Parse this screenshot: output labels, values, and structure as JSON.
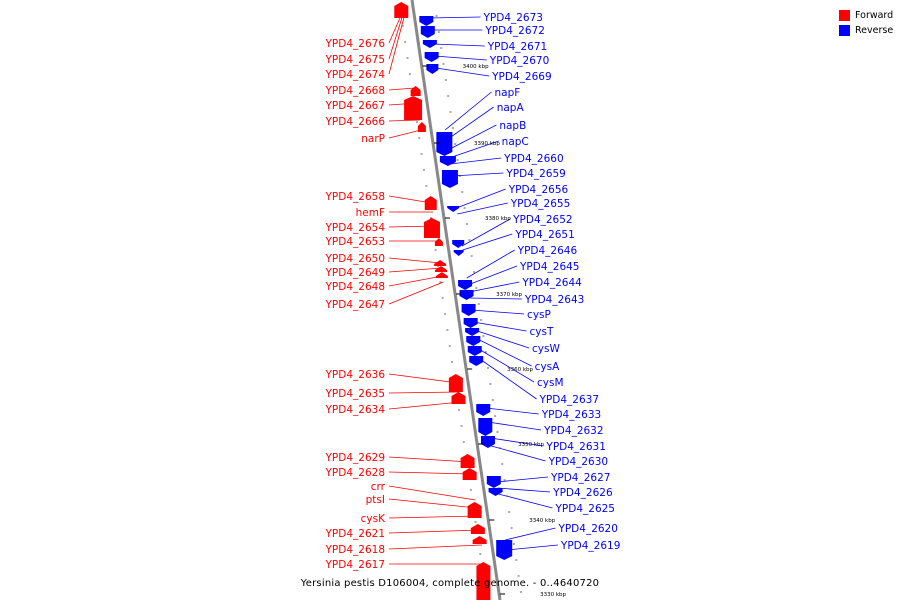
{
  "caption": "Yersinia pestis D106004, complete genome. - 0..4640720",
  "legend": [
    {
      "label": "Forward",
      "color": "#ff0000"
    },
    {
      "label": "Reverse",
      "color": "#0000ff"
    }
  ],
  "colors": {
    "forward": "#ff0000",
    "reverse": "#0000ff",
    "backbone": "#888888",
    "tick": "#000000"
  },
  "forward_genes": [
    "YPD4_2676",
    "YPD4_2675",
    "YPD4_2674",
    "YPD4_2668",
    "YPD4_2667",
    "YPD4_2666",
    "narP",
    "YPD4_2658",
    "hemF",
    "YPD4_2654",
    "YPD4_2653",
    "YPD4_2650",
    "YPD4_2649",
    "YPD4_2648",
    "YPD4_2647",
    "YPD4_2636",
    "YPD4_2635",
    "YPD4_2634",
    "YPD4_2629",
    "YPD4_2628",
    "crr",
    "ptsI",
    "cysK",
    "YPD4_2621",
    "YPD4_2618",
    "YPD4_2617"
  ],
  "reverse_genes": [
    "YPD4_2673",
    "YPD4_2672",
    "YPD4_2671",
    "YPD4_2670",
    "YPD4_2669",
    "napF",
    "napA",
    "napB",
    "napC",
    "YPD4_2660",
    "YPD4_2659",
    "YPD4_2656",
    "YPD4_2655",
    "YPD4_2652",
    "YPD4_2651",
    "YPD4_2646",
    "YPD4_2645",
    "YPD4_2644",
    "YPD4_2643",
    "cysP",
    "cysT",
    "cysW",
    "cysA",
    "cysM",
    "YPD4_2637",
    "YPD4_2633",
    "YPD4_2632",
    "YPD4_2631",
    "YPD4_2630",
    "YPD4_2627",
    "YPD4_2626",
    "YPD4_2625",
    "YPD4_2620",
    "YPD4_2619"
  ],
  "scale_ticks": [
    "3400 kbp",
    "3390 kbp",
    "3380 kbp",
    "3370 kbp",
    "3360 kbp",
    "3350 kbp",
    "3340 kbp",
    "3330 kbp"
  ]
}
